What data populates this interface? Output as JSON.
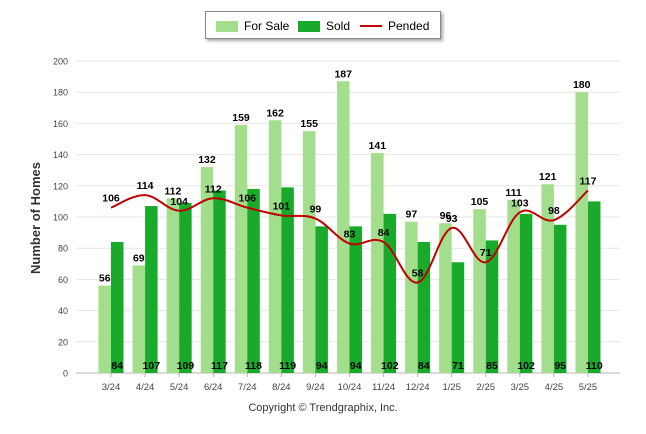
{
  "chart_data": {
    "type": "bar",
    "categories": [
      "3/24",
      "4/24",
      "5/24",
      "6/24",
      "7/24",
      "8/24",
      "9/24",
      "10/24",
      "11/24",
      "12/24",
      "1/25",
      "2/25",
      "3/25",
      "4/25",
      "5/25"
    ],
    "series": [
      {
        "name": "For Sale",
        "kind": "bar",
        "color": "#a2de8c",
        "values": [
          56,
          69,
          112,
          132,
          159,
          162,
          155,
          187,
          141,
          97,
          96,
          105,
          111,
          121,
          180
        ]
      },
      {
        "name": "Sold",
        "kind": "bar",
        "color": "#1aaa2b",
        "values": [
          84,
          107,
          109,
          117,
          118,
          119,
          94,
          94,
          102,
          84,
          71,
          85,
          102,
          95,
          110
        ]
      },
      {
        "name": "Pended",
        "kind": "line",
        "color": "#c00000",
        "values": [
          106,
          114,
          104,
          112,
          106,
          101,
          99,
          83,
          84,
          58,
          93,
          71,
          103,
          98,
          117
        ]
      }
    ],
    "ylabel": "Number of Homes",
    "xlabel": "",
    "ylim": [
      0,
      200
    ],
    "yticks": [
      0,
      20,
      40,
      60,
      80,
      100,
      120,
      140,
      160,
      180,
      200
    ],
    "grid": true,
    "legend_position": "top-center"
  },
  "legend": {
    "for_sale": "For Sale",
    "sold": "Sold",
    "pended": "Pended"
  },
  "footer": {
    "copyright": "Copyright © Trendgraphix, Inc."
  }
}
